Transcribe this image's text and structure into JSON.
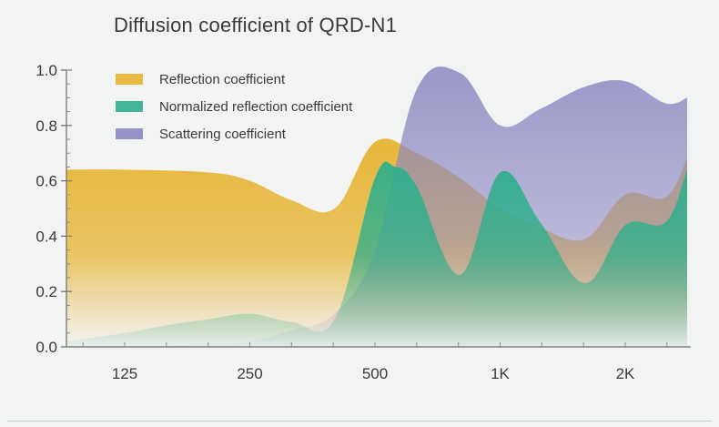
{
  "chart_data": {
    "type": "area",
    "title": "Diffusion coefficient of QRD-N1",
    "xlabel": "",
    "ylabel": "",
    "x_ticks": [
      "125",
      "250",
      "500",
      "1K",
      "2K"
    ],
    "y_ticks": [
      "0.0",
      "0.2",
      "0.4",
      "0.6",
      "0.8",
      "1.0"
    ],
    "ylim": [
      0,
      1.0
    ],
    "x_scale": "log (octave positions: 125, 250, 500, 1K, 2K)",
    "legend_position": "top-left",
    "grid": false,
    "series": [
      {
        "name": "Reflection coefficient",
        "color": "#e7b431",
        "x": [
          86,
          125,
          200,
          250,
          315,
          400,
          500,
          630,
          800,
          1000,
          1250,
          1600,
          2000,
          2500,
          2960
        ],
        "y": [
          0.64,
          0.64,
          0.63,
          0.6,
          0.53,
          0.5,
          0.74,
          0.7,
          0.61,
          0.5,
          0.43,
          0.39,
          0.55,
          0.54,
          0.68
        ]
      },
      {
        "name": "Normalized reflection coefficient",
        "color": "#2fae8c",
        "x": [
          86,
          125,
          160,
          200,
          250,
          315,
          400,
          500,
          560,
          630,
          800,
          1000,
          1250,
          1600,
          2000,
          2500,
          2960
        ],
        "y": [
          0.02,
          0.05,
          0.08,
          0.1,
          0.12,
          0.09,
          0.1,
          0.61,
          0.65,
          0.58,
          0.26,
          0.63,
          0.45,
          0.23,
          0.44,
          0.45,
          0.64
        ]
      },
      {
        "name": "Scattering coefficient",
        "color": "#8b87c2",
        "x": [
          86,
          125,
          200,
          250,
          315,
          400,
          500,
          630,
          800,
          1000,
          1250,
          1600,
          2000,
          2500,
          2960
        ],
        "y": [
          0.0,
          0.0,
          0.01,
          0.02,
          0.06,
          0.12,
          0.35,
          0.93,
          0.99,
          0.8,
          0.86,
          0.94,
          0.96,
          0.88,
          0.9
        ]
      }
    ]
  }
}
